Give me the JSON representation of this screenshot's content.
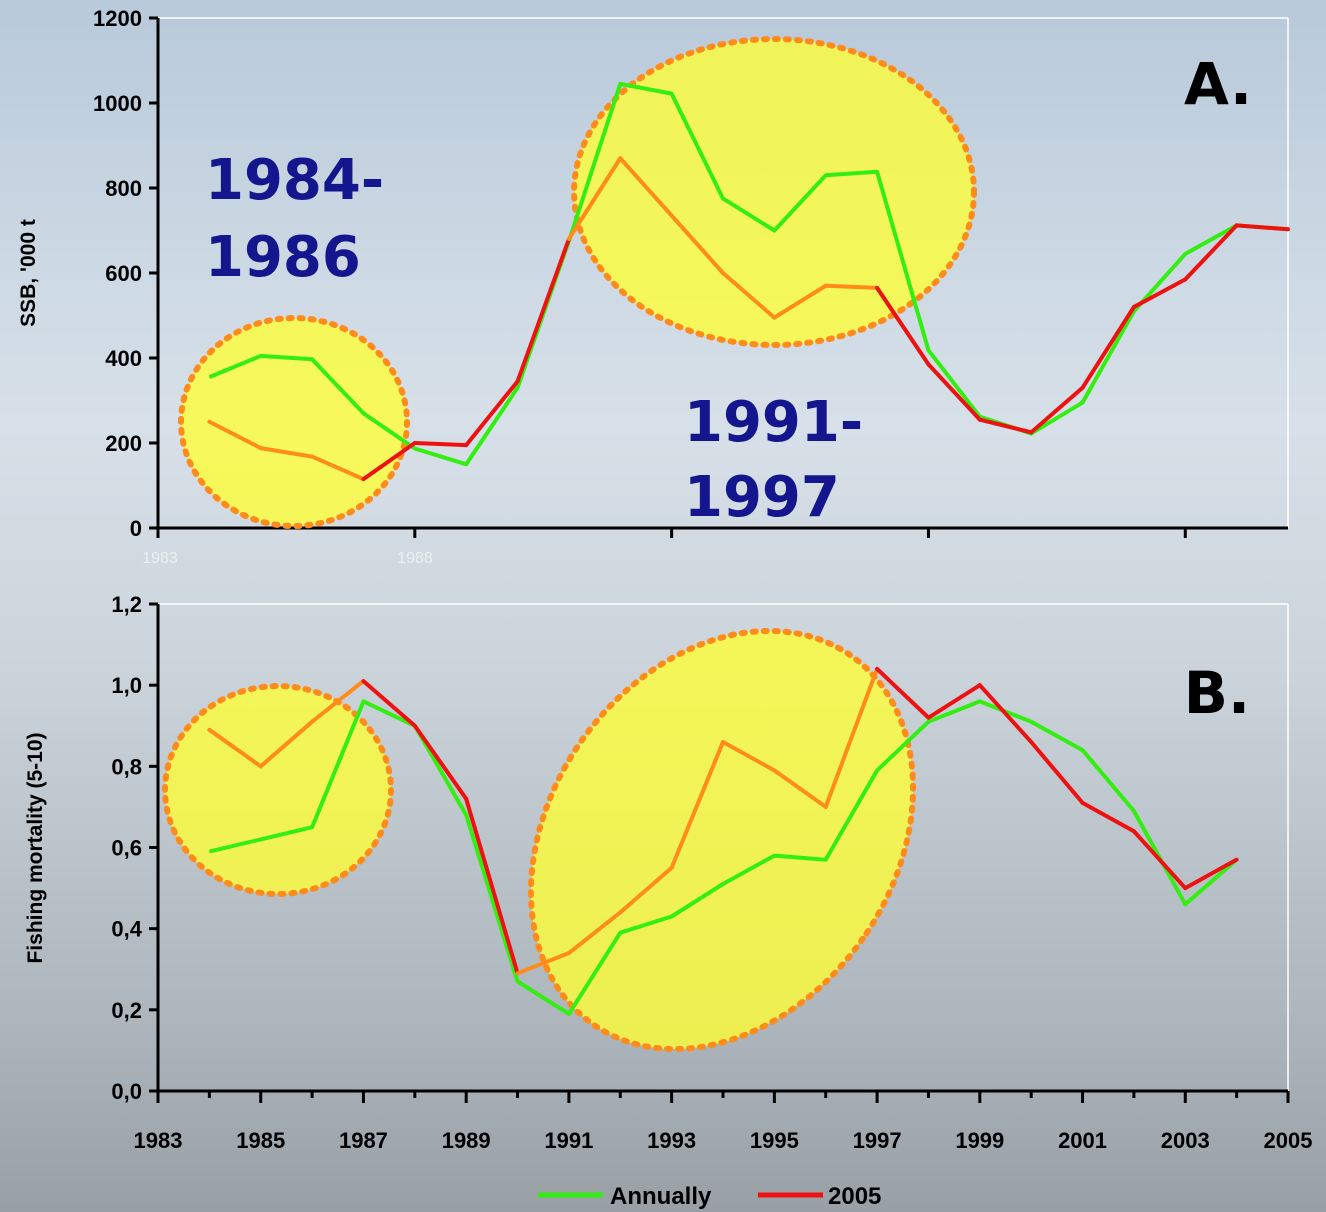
{
  "colors": {
    "annually": "#33ee11",
    "year2005": "#ee1111",
    "highlight_line": "#ff8c1a",
    "highlight_fill": "#ffff33",
    "annotation_text": "#13168c"
  },
  "legend": {
    "annually": "Annually",
    "year2005": "2005",
    "placement": "bottom-center"
  },
  "chart_data": [
    {
      "type": "line",
      "panel_label": "A.",
      "ylabel": "SSB, '000 t",
      "ylim": [
        0,
        1200
      ],
      "yticks": [
        0,
        200,
        400,
        600,
        800,
        1000,
        1200
      ],
      "ytick_labels": [
        "0",
        "200",
        "400",
        "600",
        "800",
        "1000",
        "1200"
      ],
      "xlim": [
        1983,
        2005
      ],
      "faint_xtick_labels": [
        {
          "x": 1983,
          "label": "1983"
        },
        {
          "x": 1988,
          "label": "1988"
        }
      ],
      "grid": false,
      "series": [
        {
          "name": "Annually",
          "x": [
            1984,
            1985,
            1986,
            1987,
            1988,
            1989,
            1990,
            1991,
            1992,
            1993,
            1994,
            1995,
            1996,
            1997,
            1998,
            1999,
            2000,
            2001,
            2002,
            2003,
            2004,
            2005
          ],
          "y": [
            355,
            405,
            397,
            270,
            187,
            150,
            330,
            675,
            1045,
            1022,
            775,
            700,
            830,
            838,
            418,
            262,
            222,
            295,
            510,
            645,
            712,
            703
          ]
        },
        {
          "name": "2005",
          "x": [
            1984,
            1985,
            1986,
            1987,
            1988,
            1989,
            1990,
            1991,
            1992,
            1993,
            1994,
            1995,
            1996,
            1997,
            1998,
            1999,
            2000,
            2001,
            2002,
            2003,
            2004,
            2005
          ],
          "y": [
            250,
            188,
            168,
            115,
            200,
            195,
            345,
            680,
            870,
            735,
            600,
            495,
            570,
            565,
            385,
            255,
            225,
            330,
            520,
            585,
            712,
            703
          ]
        }
      ],
      "annotations": [
        {
          "lines": [
            "1984-",
            "1986"
          ]
        },
        {
          "lines": [
            "1991-",
            "1997"
          ]
        }
      ]
    },
    {
      "type": "line",
      "panel_label": "B.",
      "ylabel": "Fishing mortality (5-10)",
      "ylim": [
        0,
        1.2
      ],
      "yticks": [
        0,
        0.2,
        0.4,
        0.6,
        0.8,
        1.0,
        1.2
      ],
      "ytick_labels": [
        "0,0",
        "0,2",
        "0,4",
        "0,6",
        "0,8",
        "1,0",
        "1,2"
      ],
      "xlim": [
        1983,
        2005
      ],
      "xtick_labels": [
        "1983",
        "1985",
        "1987",
        "1989",
        "1991",
        "1993",
        "1995",
        "1997",
        "1999",
        "2001",
        "2003",
        "2005"
      ],
      "grid": false,
      "series": [
        {
          "name": "Annually",
          "x": [
            1984,
            1985,
            1986,
            1987,
            1988,
            1989,
            1990,
            1991,
            1992,
            1993,
            1994,
            1995,
            1996,
            1997,
            1998,
            1999,
            2000,
            2001,
            2002,
            2003,
            2004
          ],
          "y": [
            0.59,
            0.62,
            0.65,
            0.96,
            0.9,
            0.68,
            0.27,
            0.19,
            0.39,
            0.43,
            0.51,
            0.58,
            0.57,
            0.79,
            0.91,
            0.96,
            0.91,
            0.84,
            0.69,
            0.46,
            0.57
          ]
        },
        {
          "name": "2005",
          "x": [
            1984,
            1985,
            1986,
            1987,
            1988,
            1989,
            1990,
            1991,
            1992,
            1993,
            1994,
            1995,
            1996,
            1997,
            1998,
            1999,
            2000,
            2001,
            2002,
            2003,
            2004
          ],
          "y": [
            0.89,
            0.8,
            0.91,
            1.01,
            0.9,
            0.72,
            0.29,
            0.34,
            0.44,
            0.55,
            0.86,
            0.79,
            0.7,
            1.04,
            0.92,
            1.0,
            0.86,
            0.71,
            0.64,
            0.5,
            0.57
          ]
        }
      ]
    }
  ]
}
